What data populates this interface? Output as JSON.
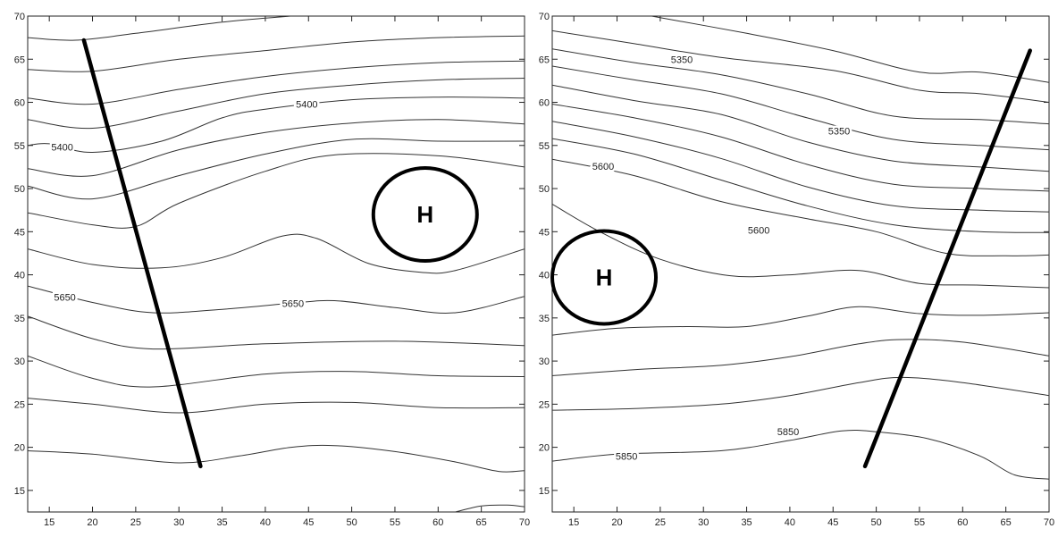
{
  "chart_data": [
    {
      "type": "contour",
      "panel": "left",
      "x_ticks": [
        "15",
        "20",
        "25",
        "30",
        "35",
        "40",
        "45",
        "50",
        "55",
        "60",
        "65",
        "70"
      ],
      "y_ticks": [
        "15",
        "20",
        "25",
        "30",
        "35",
        "40",
        "45",
        "50",
        "55",
        "60",
        "65",
        "70"
      ],
      "xlim": [
        12.5,
        70
      ],
      "ylim": [
        12.5,
        70
      ],
      "grid": false,
      "contours": [
        {
          "points": [
            [
              12.5,
              67.5
            ],
            [
              18,
              67.2
            ],
            [
              25,
              68.0
            ],
            [
              35,
              69.3
            ],
            [
              43,
              70
            ]
          ]
        },
        {
          "points": [
            [
              12.5,
              63.8
            ],
            [
              20,
              63.6
            ],
            [
              30,
              65.0
            ],
            [
              40,
              66.0
            ],
            [
              50,
              67.0
            ],
            [
              60,
              67.5
            ],
            [
              70,
              67.7
            ]
          ]
        },
        {
          "points": [
            [
              12.5,
              60.5
            ],
            [
              20,
              59.8
            ],
            [
              30,
              61.5
            ],
            [
              40,
              63.0
            ],
            [
              50,
              64.0
            ],
            [
              60,
              64.6
            ],
            [
              70,
              64.8
            ]
          ]
        },
        {
          "points": [
            [
              12.5,
              58.0
            ],
            [
              20,
              57.0
            ],
            [
              30,
              59.0
            ],
            [
              40,
              61.0
            ],
            [
              50,
              62.0
            ],
            [
              60,
              62.6
            ],
            [
              70,
              62.8
            ]
          ]
        },
        {
          "points": [
            [
              12.5,
              55.0
            ],
            [
              15,
              55.2
            ],
            [
              20,
              54.2
            ],
            [
              28,
              55.5
            ],
            [
              35,
              58.2
            ],
            [
              40,
              59.2
            ],
            [
              50,
              60.3
            ],
            [
              60,
              60.6
            ],
            [
              70,
              60.5
            ]
          ]
        },
        {
          "points": [
            [
              12.5,
              52.3
            ],
            [
              20,
              51.5
            ],
            [
              30,
              54.5
            ],
            [
              40,
              56.5
            ],
            [
              50,
              57.6
            ],
            [
              60,
              58.0
            ],
            [
              70,
              57.5
            ]
          ]
        },
        {
          "points": [
            [
              12.5,
              50.3
            ],
            [
              20,
              48.8
            ],
            [
              30,
              51.5
            ],
            [
              40,
              54.0
            ],
            [
              50,
              55.7
            ],
            [
              60,
              55.5
            ],
            [
              70,
              55.5
            ]
          ]
        },
        {
          "points": [
            [
              12.5,
              47.2
            ],
            [
              20,
              45.8
            ],
            [
              25,
              45.6
            ],
            [
              30,
              48.3
            ],
            [
              40,
              52.0
            ],
            [
              48,
              53.9
            ],
            [
              60,
              53.8
            ],
            [
              70,
              52.5
            ]
          ]
        },
        {
          "points": [
            [
              12.5,
              43.0
            ],
            [
              20,
              41.2
            ],
            [
              28,
              40.8
            ],
            [
              35,
              42.0
            ],
            [
              42,
              44.5
            ],
            [
              46,
              44.2
            ],
            [
              52,
              41.3
            ],
            [
              58,
              40.3
            ],
            [
              62,
              40.5
            ],
            [
              70,
              43.0
            ]
          ]
        },
        {
          "points": [
            [
              12.5,
              38.7
            ],
            [
              20,
              36.8
            ],
            [
              27,
              35.6
            ],
            [
              35,
              36.0
            ],
            [
              43,
              36.7
            ],
            [
              48,
              37.0
            ],
            [
              55,
              36.2
            ],
            [
              62,
              35.6
            ],
            [
              70,
              37.5
            ]
          ]
        },
        {
          "points": [
            [
              12.5,
              35.2
            ],
            [
              20,
              32.6
            ],
            [
              27,
              31.4
            ],
            [
              40,
              32.0
            ],
            [
              55,
              32.3
            ],
            [
              70,
              31.8
            ]
          ]
        },
        {
          "points": [
            [
              12.5,
              30.6
            ],
            [
              20,
              28.0
            ],
            [
              27,
              27.0
            ],
            [
              40,
              28.5
            ],
            [
              50,
              28.8
            ],
            [
              60,
              28.3
            ],
            [
              70,
              28.2
            ]
          ]
        },
        {
          "points": [
            [
              12.5,
              25.7
            ],
            [
              20,
              25.0
            ],
            [
              30,
              24.0
            ],
            [
              40,
              25.0
            ],
            [
              50,
              25.2
            ],
            [
              60,
              24.6
            ],
            [
              70,
              24.6
            ]
          ]
        },
        {
          "points": [
            [
              12.5,
              19.6
            ],
            [
              20,
              19.2
            ],
            [
              30,
              18.2
            ],
            [
              37,
              19.0
            ],
            [
              43,
              20.0
            ],
            [
              48,
              20.2
            ],
            [
              55,
              19.5
            ],
            [
              62,
              18.3
            ],
            [
              67,
              17.2
            ],
            [
              70,
              17.3
            ]
          ]
        },
        {
          "points": [
            [
              62,
              12.5
            ],
            [
              65,
              13.2
            ],
            [
              68,
              13.3
            ],
            [
              70,
              13.1
            ]
          ]
        }
      ],
      "contour_labels": [
        {
          "text": "5400",
          "x": 44.8,
          "y": 59.8
        },
        {
          "text": "5400",
          "x": 16.5,
          "y": 54.8
        },
        {
          "text": "5650",
          "x": 16.8,
          "y": 37.4
        },
        {
          "text": "5650",
          "x": 43.2,
          "y": 36.7
        }
      ],
      "thick_line": {
        "from": [
          19.0,
          67.2
        ],
        "to": [
          32.5,
          17.8
        ]
      },
      "high_marker": {
        "text": "H",
        "x": 58.5,
        "y": 47.0
      }
    },
    {
      "type": "contour",
      "panel": "right",
      "x_ticks": [
        "15",
        "20",
        "25",
        "30",
        "35",
        "40",
        "45",
        "50",
        "55",
        "60",
        "65",
        "70"
      ],
      "y_ticks": [
        "15",
        "20",
        "25",
        "30",
        "35",
        "40",
        "45",
        "50",
        "55",
        "60",
        "65",
        "70"
      ],
      "xlim": [
        12.5,
        70
      ],
      "ylim": [
        12.5,
        70
      ],
      "grid": false,
      "contours": [
        {
          "points": [
            [
              24,
              70
            ],
            [
              35,
              68.0
            ],
            [
              45,
              66.0
            ],
            [
              55,
              63.5
            ],
            [
              62,
              63.5
            ],
            [
              70,
              62.3
            ]
          ]
        },
        {
          "points": [
            [
              12.5,
              68.3
            ],
            [
              22,
              66.8
            ],
            [
              32,
              65.2
            ],
            [
              45,
              63.7
            ],
            [
              55,
              61.4
            ],
            [
              62,
              61.0
            ],
            [
              70,
              60.0
            ]
          ]
        },
        {
          "points": [
            [
              12.5,
              66.2
            ],
            [
              22,
              64.6
            ],
            [
              32,
              63.2
            ],
            [
              42,
              61.0
            ],
            [
              52,
              58.4
            ],
            [
              62,
              58.0
            ],
            [
              70,
              57.5
            ]
          ]
        },
        {
          "points": [
            [
              12.5,
              64.2
            ],
            [
              22,
              62.6
            ],
            [
              32,
              61.0
            ],
            [
              42,
              58.2
            ],
            [
              52,
              55.7
            ],
            [
              62,
              55.0
            ],
            [
              70,
              54.5
            ]
          ]
        },
        {
          "points": [
            [
              12.5,
              62.0
            ],
            [
              22,
              60.2
            ],
            [
              32,
              58.6
            ],
            [
              42,
              55.4
            ],
            [
              52,
              53.2
            ],
            [
              62,
              52.5
            ],
            [
              70,
              52.0
            ]
          ]
        },
        {
          "points": [
            [
              12.5,
              59.8
            ],
            [
              22,
              58.2
            ],
            [
              32,
              56.0
            ],
            [
              42,
              52.8
            ],
            [
              52,
              50.5
            ],
            [
              62,
              50.0
            ],
            [
              70,
              49.7
            ]
          ]
        },
        {
          "points": [
            [
              12.5,
              57.8
            ],
            [
              22,
              56.0
            ],
            [
              32,
              53.5
            ],
            [
              42,
              50.2
            ],
            [
              52,
              48.0
            ],
            [
              62,
              47.5
            ],
            [
              70,
              47.3
            ]
          ]
        },
        {
          "points": [
            [
              12.5,
              55.8
            ],
            [
              22,
              54.0
            ],
            [
              32,
              51.0
            ],
            [
              42,
              48.0
            ],
            [
              52,
              45.8
            ],
            [
              62,
              45.0
            ],
            [
              70,
              44.9
            ]
          ]
        },
        {
          "points": [
            [
              12.5,
              53.4
            ],
            [
              22,
              51.5
            ],
            [
              32,
              48.5
            ],
            [
              42,
              46.5
            ],
            [
              50,
              45.0
            ],
            [
              58,
              42.5
            ],
            [
              65,
              42.2
            ],
            [
              70,
              42.3
            ]
          ]
        },
        {
          "points": [
            [
              12.5,
              48.2
            ],
            [
              18,
              45.0
            ],
            [
              25,
              41.8
            ],
            [
              33,
              39.9
            ],
            [
              40,
              40.0
            ],
            [
              48,
              40.5
            ],
            [
              55,
              39.0
            ],
            [
              62,
              38.8
            ],
            [
              70,
              38.5
            ]
          ]
        },
        {
          "points": [
            [
              12.5,
              33.0
            ],
            [
              20,
              33.8
            ],
            [
              28,
              34.0
            ],
            [
              35,
              34.0
            ],
            [
              42,
              35.2
            ],
            [
              48,
              36.3
            ],
            [
              55,
              35.5
            ],
            [
              62,
              35.3
            ],
            [
              70,
              35.6
            ]
          ]
        },
        {
          "points": [
            [
              12.5,
              28.3
            ],
            [
              22,
              29.0
            ],
            [
              32,
              29.5
            ],
            [
              40,
              30.5
            ],
            [
              48,
              32.0
            ],
            [
              53,
              32.5
            ],
            [
              60,
              32.2
            ],
            [
              70,
              30.6
            ]
          ]
        },
        {
          "points": [
            [
              12.5,
              24.3
            ],
            [
              22,
              24.5
            ],
            [
              32,
              25.0
            ],
            [
              40,
              26.0
            ],
            [
              48,
              27.5
            ],
            [
              53,
              28.1
            ],
            [
              60,
              27.5
            ],
            [
              70,
              26.0
            ]
          ]
        },
        {
          "points": [
            [
              12.5,
              18.4
            ],
            [
              20,
              19.2
            ],
            [
              32,
              19.6
            ],
            [
              40,
              20.8
            ],
            [
              46,
              21.9
            ],
            [
              50,
              21.8
            ],
            [
              56,
              21.0
            ],
            [
              62,
              19.0
            ],
            [
              66,
              16.8
            ],
            [
              70,
              16.3
            ]
          ]
        }
      ],
      "contour_labels": [
        {
          "text": "5350",
          "x": 27.5,
          "y": 65.0
        },
        {
          "text": "5350",
          "x": 45.7,
          "y": 56.7
        },
        {
          "text": "5600",
          "x": 18.4,
          "y": 52.6
        },
        {
          "text": "5600",
          "x": 36.4,
          "y": 45.2
        },
        {
          "text": "5850",
          "x": 39.8,
          "y": 21.8
        },
        {
          "text": "5850",
          "x": 21.1,
          "y": 19.0
        }
      ],
      "thick_line": {
        "from": [
          48.7,
          17.8
        ],
        "to": [
          67.8,
          66.0
        ]
      },
      "high_marker": {
        "text": "H",
        "x": 18.5,
        "y": 39.7
      }
    }
  ]
}
